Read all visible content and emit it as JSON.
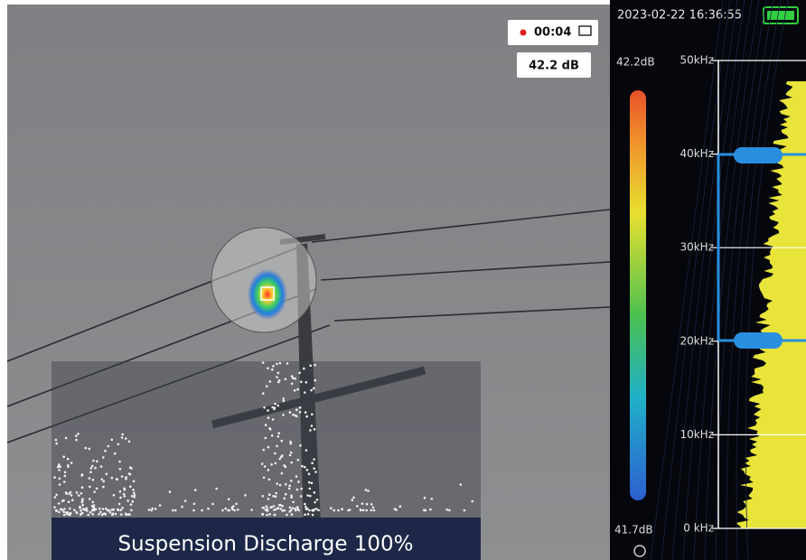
{
  "status_bar": {
    "timestamp": "2023-02-22 16:36:55"
  },
  "recording": {
    "time": "00:04"
  },
  "reading": {
    "level": "42.2 dB"
  },
  "color_scale": {
    "max": "42.2dB",
    "min": "41.7dB"
  },
  "frequency_axis": {
    "labels": [
      "50kHz",
      "40kHz",
      "30kHz",
      "20kHz",
      "10kHz",
      "0 kHz"
    ]
  },
  "detection": {
    "label": "Suspension Discharge 100%"
  }
}
